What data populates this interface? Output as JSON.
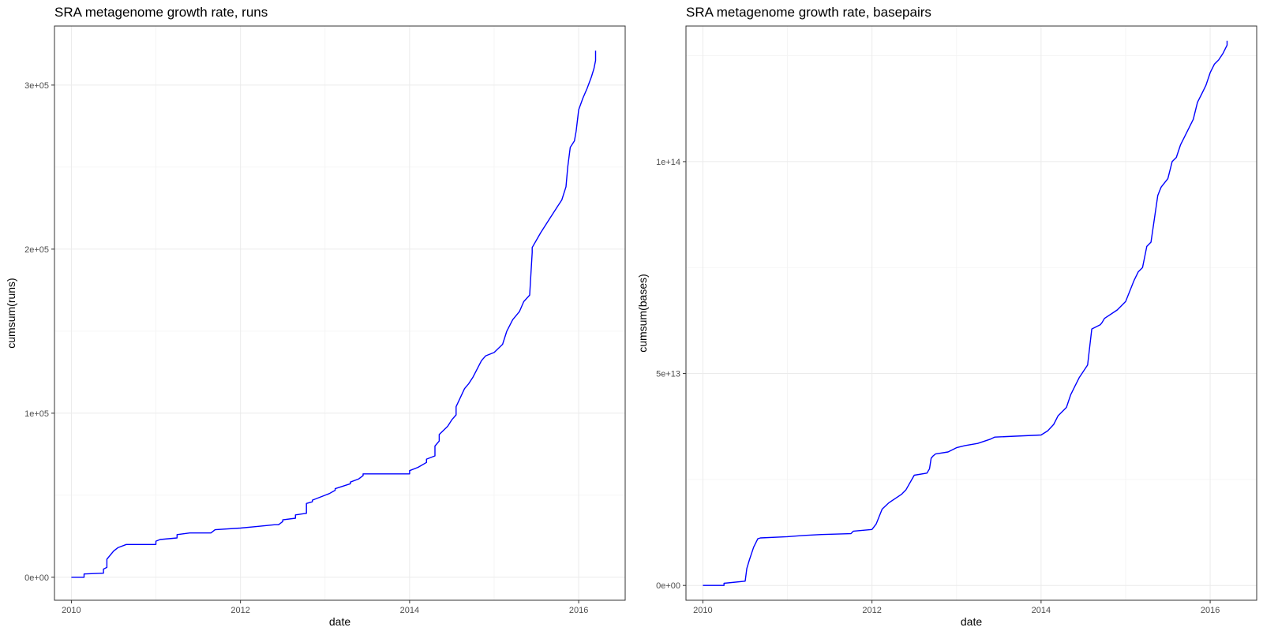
{
  "chart_data": [
    {
      "type": "line",
      "title": "SRA metagenome growth rate, runs",
      "xlabel": "date",
      "ylabel": "cumsum(runs)",
      "x_ticks": [
        "2010",
        "2012",
        "2014",
        "2016"
      ],
      "y_ticks": [
        "0e+00",
        "1e+05",
        "2e+05",
        "3e+05"
      ],
      "y_tick_values": [
        0,
        100000,
        200000,
        300000
      ],
      "xlim": [
        2009.8,
        2016.55
      ],
      "ylim": [
        -14000,
        336000
      ],
      "color": "#0000ff",
      "grid": true,
      "series": [
        {
          "x": [
            2010.0,
            2010.15,
            2010.15,
            2010.38,
            2010.38,
            2010.42,
            2010.42,
            2010.5,
            2010.55,
            2010.65,
            2010.75,
            2011.0,
            2011.0,
            2011.05,
            2011.25,
            2011.25,
            2011.4,
            2011.65,
            2011.7,
            2012.0,
            2012.2,
            2012.4,
            2012.45,
            2012.5,
            2012.5,
            2012.65,
            2012.65,
            2012.78,
            2012.78,
            2012.85,
            2012.85,
            2013.0,
            2013.05,
            2013.12,
            2013.12,
            2013.3,
            2013.3,
            2013.4,
            2013.45,
            2013.45,
            2014.0,
            2014.0,
            2014.1,
            2014.2,
            2014.2,
            2014.3,
            2014.3,
            2014.35,
            2014.35,
            2014.45,
            2014.5,
            2014.55,
            2014.55,
            2014.65,
            2014.7,
            2014.75,
            2014.85,
            2014.9,
            2015.0,
            2015.1,
            2015.15,
            2015.22,
            2015.3,
            2015.35,
            2015.42,
            2015.45,
            2015.45,
            2015.55,
            2015.65,
            2015.75,
            2015.8,
            2015.85,
            2015.87,
            2015.9,
            2015.95,
            2015.97,
            2016.0,
            2016.05,
            2016.1,
            2016.15,
            2016.18,
            2016.2,
            2016.2
          ],
          "y": [
            0,
            0,
            2000,
            2500,
            5000,
            6000,
            11000,
            16000,
            18000,
            20000,
            20000,
            20000,
            22000,
            23000,
            24000,
            26000,
            27000,
            27000,
            29000,
            30000,
            31000,
            32000,
            32000,
            34000,
            35000,
            36000,
            38000,
            39000,
            45000,
            46000,
            47000,
            50000,
            51000,
            53000,
            54000,
            57000,
            58000,
            60000,
            62000,
            63000,
            63000,
            65000,
            67000,
            70000,
            72000,
            74000,
            80000,
            83000,
            87000,
            92000,
            96000,
            99000,
            104000,
            115000,
            118000,
            122000,
            132000,
            135000,
            137000,
            142000,
            150000,
            157000,
            162000,
            168000,
            172000,
            198000,
            201000,
            210000,
            218000,
            226000,
            230000,
            238000,
            250000,
            262000,
            266000,
            272000,
            285000,
            292000,
            298000,
            305000,
            310000,
            315000,
            321000
          ]
        }
      ]
    },
    {
      "type": "line",
      "title": "SRA metagenome growth rate, basepairs",
      "xlabel": "date",
      "ylabel": "cumsum(bases)",
      "x_ticks": [
        "2010",
        "2012",
        "2014",
        "2016"
      ],
      "y_ticks": [
        "0e+00",
        "5e+13",
        "1e+14"
      ],
      "y_tick_values": [
        0,
        50000000000000,
        100000000000000
      ],
      "xlim": [
        2009.8,
        2016.55
      ],
      "ylim": [
        -3500000000000,
        132000000000000
      ],
      "color": "#0000ff",
      "grid": true,
      "series": [
        {
          "x": [
            2010.0,
            2010.25,
            2010.25,
            2010.5,
            2010.52,
            2010.55,
            2010.6,
            2010.65,
            2010.68,
            2011.0,
            2011.2,
            2011.4,
            2011.75,
            2011.78,
            2012.0,
            2012.05,
            2012.08,
            2012.12,
            2012.2,
            2012.35,
            2012.4,
            2012.5,
            2012.65,
            2012.68,
            2012.7,
            2012.72,
            2012.75,
            2012.9,
            2013.0,
            2013.1,
            2013.25,
            2013.4,
            2013.45,
            2014.0,
            2014.08,
            2014.15,
            2014.2,
            2014.3,
            2014.35,
            2014.4,
            2014.45,
            2014.55,
            2014.6,
            2014.7,
            2014.72,
            2014.75,
            2014.9,
            2015.0,
            2015.1,
            2015.15,
            2015.2,
            2015.25,
            2015.3,
            2015.38,
            2015.4,
            2015.42,
            2015.5,
            2015.55,
            2015.6,
            2015.65,
            2015.7,
            2015.8,
            2015.85,
            2015.9,
            2015.95,
            2016.0,
            2016.05,
            2016.1,
            2016.15,
            2016.2,
            2016.2
          ],
          "y": [
            0,
            0,
            500000000000,
            1000000000000,
            4000000000000,
            6000000000000,
            9000000000000,
            11000000000000,
            11200000000000,
            11500000000000,
            11800000000000,
            12000000000000,
            12200000000000,
            12800000000000,
            13200000000000,
            14500000000000,
            16000000000000,
            18000000000000,
            19500000000000,
            21500000000000,
            22500000000000,
            26000000000000,
            26500000000000,
            27500000000000,
            30000000000000,
            30500000000000,
            31000000000000,
            31500000000000,
            32500000000000,
            33000000000000,
            33500000000000,
            34500000000000,
            35000000000000,
            35500000000000,
            36500000000000,
            38000000000000,
            40000000000000,
            42000000000000,
            45000000000000,
            47000000000000,
            49000000000000,
            52000000000000,
            60500000000000,
            61500000000000,
            62000000000000,
            63000000000000,
            65000000000000,
            67000000000000,
            72000000000000,
            74000000000000,
            75000000000000,
            80000000000000,
            81000000000000,
            92000000000000,
            93000000000000,
            94000000000000,
            96000000000000,
            100000000000000,
            101000000000000,
            104000000000000,
            106000000000000,
            110000000000000,
            114000000000000,
            116000000000000,
            118000000000000,
            121000000000000,
            123000000000000,
            124000000000000,
            125500000000000,
            127500000000000,
            128500000000000
          ]
        }
      ]
    }
  ]
}
